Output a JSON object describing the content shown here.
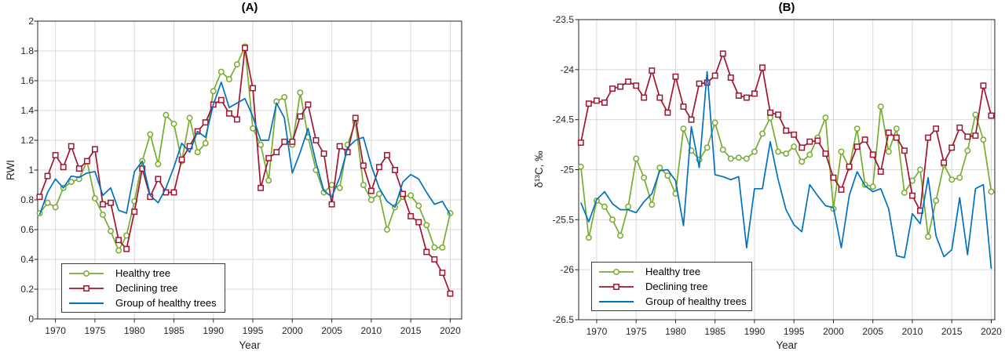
{
  "figure": {
    "background": "#ffffff"
  },
  "colors": {
    "healthy": "#77AC30",
    "declining": "#A2142F",
    "group": "#0072BD",
    "grid": "#d9d9d9",
    "axis": "#262626"
  },
  "legend": {
    "items": [
      {
        "label": "Healthy tree",
        "marker": "circle",
        "color": "#77AC30"
      },
      {
        "label": "Declining tree",
        "marker": "square",
        "color": "#A2142F"
      },
      {
        "label": "Group of healthy trees",
        "marker": "none",
        "color": "#0072BD"
      }
    ]
  },
  "chart_data": [
    {
      "type": "line",
      "title": "(A)",
      "xlabel": "Year",
      "ylabel": "RWI",
      "xlim": [
        1967.75,
        2021.45
      ],
      "ylim": [
        0,
        2
      ],
      "grid": true,
      "legend_position": "bottom-left",
      "xticks": [
        1970,
        1975,
        1980,
        1985,
        1990,
        1995,
        2000,
        2005,
        2010,
        2015,
        2020
      ],
      "yticks": [
        0,
        0.2,
        0.4,
        0.6,
        0.8,
        1,
        1.2,
        1.4,
        1.6,
        1.8,
        2
      ],
      "ytick_labels": [
        "0",
        "0.2",
        "0.4",
        "0.6",
        "0.8",
        "1",
        "1.2",
        "1.4",
        "1.6",
        "1.8",
        "2"
      ],
      "x": [
        1968,
        1969,
        1970,
        1971,
        1972,
        1973,
        1974,
        1975,
        1976,
        1977,
        1978,
        1979,
        1980,
        1981,
        1982,
        1983,
        1984,
        1985,
        1986,
        1987,
        1988,
        1989,
        1990,
        1991,
        1992,
        1993,
        1994,
        1995,
        1996,
        1997,
        1998,
        1999,
        2000,
        2001,
        2002,
        2003,
        2004,
        2005,
        2006,
        2007,
        2008,
        2009,
        2010,
        2011,
        2012,
        2013,
        2014,
        2015,
        2016,
        2017,
        2018,
        2019,
        2020
      ],
      "series": [
        {
          "name": "Healthy tree",
          "color": "#77AC30",
          "marker": "circle",
          "values": [
            0.71,
            0.78,
            0.75,
            0.88,
            0.92,
            0.94,
            1.06,
            0.81,
            0.7,
            0.59,
            0.46,
            0.56,
            0.79,
            1.06,
            1.24,
            1.04,
            1.37,
            1.31,
            1.06,
            1.35,
            1.12,
            1.18,
            1.53,
            1.66,
            1.61,
            1.71,
            1.83,
            1.28,
            1.17,
            0.93,
            1.46,
            1.49,
            1.17,
            1.52,
            1.22,
            1.0,
            0.85,
            0.9,
            0.88,
            1.17,
            1.32,
            0.9,
            0.8,
            0.84,
            0.6,
            0.75,
            0.82,
            0.83,
            0.76,
            0.63,
            0.48,
            0.48,
            0.71
          ]
        },
        {
          "name": "Declining tree",
          "color": "#A2142F",
          "marker": "square",
          "values": [
            0.82,
            0.96,
            1.1,
            1.02,
            1.16,
            1.01,
            1.06,
            1.14,
            0.77,
            0.78,
            0.53,
            0.47,
            0.72,
            1.01,
            0.82,
            0.94,
            0.85,
            0.85,
            1.07,
            1.16,
            1.26,
            1.32,
            1.44,
            1.47,
            1.38,
            1.34,
            1.82,
            1.55,
            0.88,
            1.08,
            1.12,
            1.19,
            1.19,
            1.36,
            1.44,
            1.2,
            1.11,
            0.77,
            1.16,
            1.12,
            1.35,
            1.03,
            0.86,
            1.02,
            1.1,
            1.0,
            0.84,
            0.69,
            0.65,
            0.45,
            0.4,
            0.31,
            0.17
          ]
        },
        {
          "name": "Group of healthy trees",
          "color": "#0072BD",
          "marker": "none",
          "values": [
            0.7,
            0.85,
            0.94,
            0.88,
            0.96,
            0.95,
            0.98,
            0.99,
            0.83,
            0.88,
            0.73,
            0.71,
            0.99,
            1.06,
            0.83,
            0.78,
            0.88,
            1.02,
            1.18,
            1.12,
            1.26,
            1.22,
            1.44,
            1.59,
            1.42,
            1.45,
            1.48,
            1.36,
            1.2,
            1.2,
            1.45,
            1.35,
            0.98,
            1.12,
            1.28,
            1.05,
            0.86,
            0.82,
            0.95,
            1.15,
            1.2,
            1.22,
            1.03,
            0.88,
            0.79,
            0.75,
            0.92,
            0.97,
            0.94,
            0.85,
            0.77,
            0.79,
            0.7
          ]
        }
      ]
    },
    {
      "type": "line",
      "title": "(B)",
      "xlabel": "Year",
      "ylabel": "δ¹³C, ‰",
      "xlim": [
        1967.72,
        2020.45
      ],
      "ylim": [
        -26.5,
        -23.5
      ],
      "grid": true,
      "legend_position": "bottom-left",
      "xticks": [
        1970,
        1975,
        1980,
        1985,
        1990,
        1995,
        2000,
        2005,
        2010,
        2015,
        2020
      ],
      "yticks": [
        -26.5,
        -26,
        -25.5,
        -25,
        -24.5,
        -24,
        -23.5
      ],
      "ytick_labels": [
        "-26.5",
        "-26",
        "-25.5",
        "-25",
        "-24.5",
        "-24",
        "-23.5"
      ],
      "x": [
        1968,
        1969,
        1970,
        1971,
        1972,
        1973,
        1974,
        1975,
        1976,
        1977,
        1978,
        1979,
        1980,
        1981,
        1982,
        1983,
        1984,
        1985,
        1986,
        1987,
        1988,
        1989,
        1990,
        1991,
        1992,
        1993,
        1994,
        1995,
        1996,
        1997,
        1998,
        1999,
        2000,
        2001,
        2002,
        2003,
        2004,
        2005,
        2006,
        2007,
        2008,
        2009,
        2010,
        2011,
        2012,
        2013,
        2014,
        2015,
        2016,
        2017,
        2018,
        2019,
        2020
      ],
      "series": [
        {
          "name": "Healthy tree",
          "color": "#77AC30",
          "marker": "circle",
          "values": [
            -24.97,
            -25.68,
            -25.31,
            -25.37,
            -25.5,
            -25.66,
            -25.37,
            -24.89,
            -25.08,
            -25.35,
            -24.98,
            -25.06,
            -25.24,
            -24.59,
            -24.81,
            -24.9,
            -24.78,
            -24.53,
            -24.8,
            -24.89,
            -24.88,
            -24.89,
            -24.82,
            -24.64,
            -24.48,
            -24.82,
            -24.84,
            -24.77,
            -24.92,
            -24.85,
            -24.68,
            -24.48,
            -25.39,
            -24.82,
            -24.98,
            -24.59,
            -25.15,
            -25.17,
            -24.37,
            -24.82,
            -24.59,
            -25.23,
            -25.11,
            -25.0,
            -25.67,
            -25.31,
            -24.95,
            -25.1,
            -25.08,
            -24.81,
            -24.45,
            -24.7,
            -25.22
          ]
        },
        {
          "name": "Declining tree",
          "color": "#A2142F",
          "marker": "square",
          "values": [
            -24.73,
            -24.34,
            -24.31,
            -24.33,
            -24.19,
            -24.17,
            -24.12,
            -24.16,
            -24.28,
            -24.01,
            -24.28,
            -24.43,
            -24.07,
            -24.37,
            -24.5,
            -24.14,
            -24.13,
            -24.06,
            -23.84,
            -24.08,
            -24.26,
            -24.28,
            -24.24,
            -23.98,
            -24.43,
            -24.45,
            -24.61,
            -24.65,
            -24.78,
            -24.72,
            -24.71,
            -24.84,
            -25.08,
            -25.2,
            -24.97,
            -24.77,
            -24.7,
            -24.85,
            -25.02,
            -24.63,
            -24.68,
            -24.81,
            -25.26,
            -25.41,
            -24.68,
            -24.59,
            -24.93,
            -24.78,
            -24.58,
            -24.67,
            -24.66,
            -24.16,
            -24.46
          ]
        },
        {
          "name": "Group of healthy trees",
          "color": "#0072BD",
          "marker": "none",
          "values": [
            -25.33,
            -25.52,
            -25.3,
            -25.22,
            -25.34,
            -25.4,
            -25.4,
            -25.43,
            -25.32,
            -25.24,
            -25.01,
            -25.0,
            -25.11,
            -25.56,
            -24.57,
            -24.98,
            -24.02,
            -25.05,
            -25.07,
            -25.1,
            -25.07,
            -25.78,
            -25.19,
            -25.19,
            -24.72,
            -25.1,
            -25.4,
            -25.55,
            -25.62,
            -25.15,
            -25.26,
            -25.36,
            -25.38,
            -25.78,
            -25.26,
            -25.02,
            -25.16,
            -25.22,
            -25.19,
            -25.39,
            -25.86,
            -25.88,
            -25.44,
            -25.54,
            -25.08,
            -25.66,
            -25.87,
            -25.8,
            -25.28,
            -25.85,
            -25.19,
            -25.15,
            -25.99
          ]
        }
      ]
    }
  ]
}
